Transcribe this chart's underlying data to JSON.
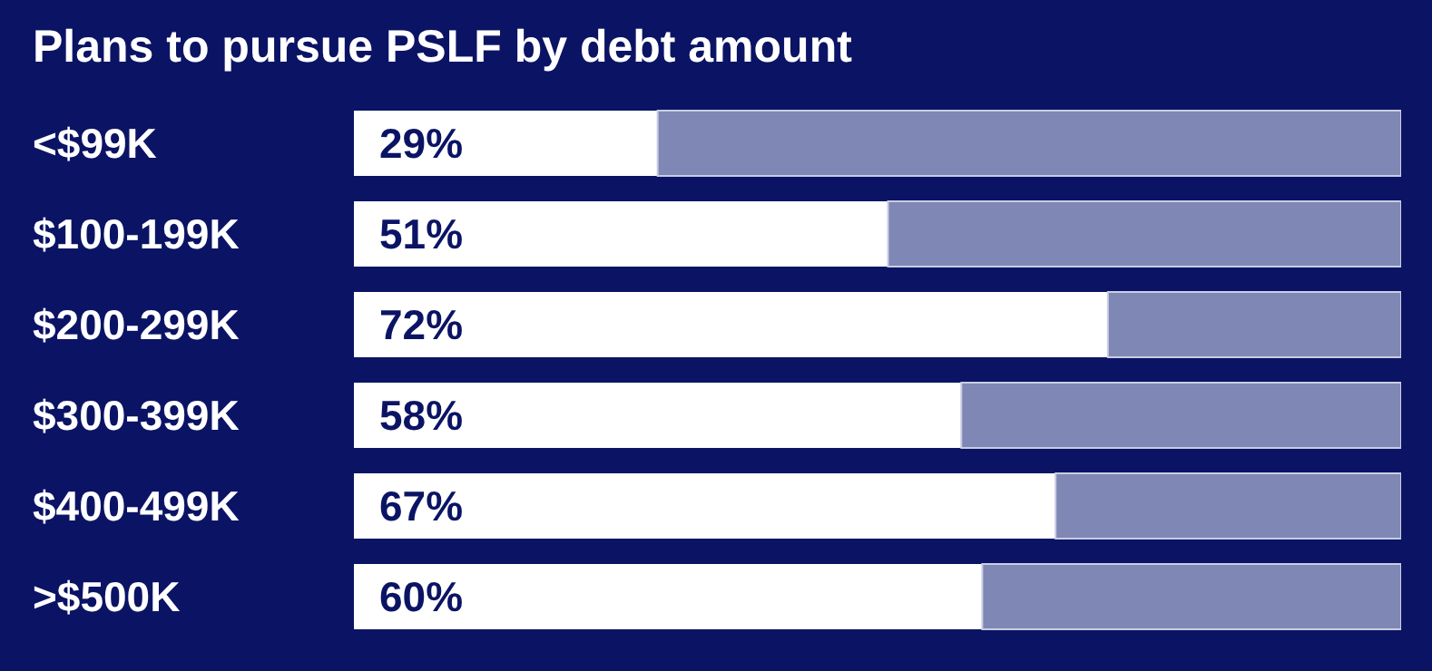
{
  "chart_data": {
    "type": "bar",
    "orientation": "horizontal",
    "stacked": true,
    "title": "Plans to pursue PSLF by debt amount",
    "categories": [
      "<$99K",
      "$100-199K",
      "$200-299K",
      "$300-399K",
      "$400-499K",
      ">$500K"
    ],
    "series": [
      {
        "color": "#ffffff",
        "values": [
          29,
          51,
          72,
          58,
          67,
          60
        ],
        "value_labels": [
          "29%",
          "51%",
          "72%",
          "58%",
          "67%",
          "60%"
        ]
      },
      {
        "color": "#7f88b4",
        "values": [
          71,
          49,
          28,
          42,
          33,
          40
        ]
      }
    ],
    "xlim": [
      0,
      100
    ],
    "tick_labels": "y"
  }
}
